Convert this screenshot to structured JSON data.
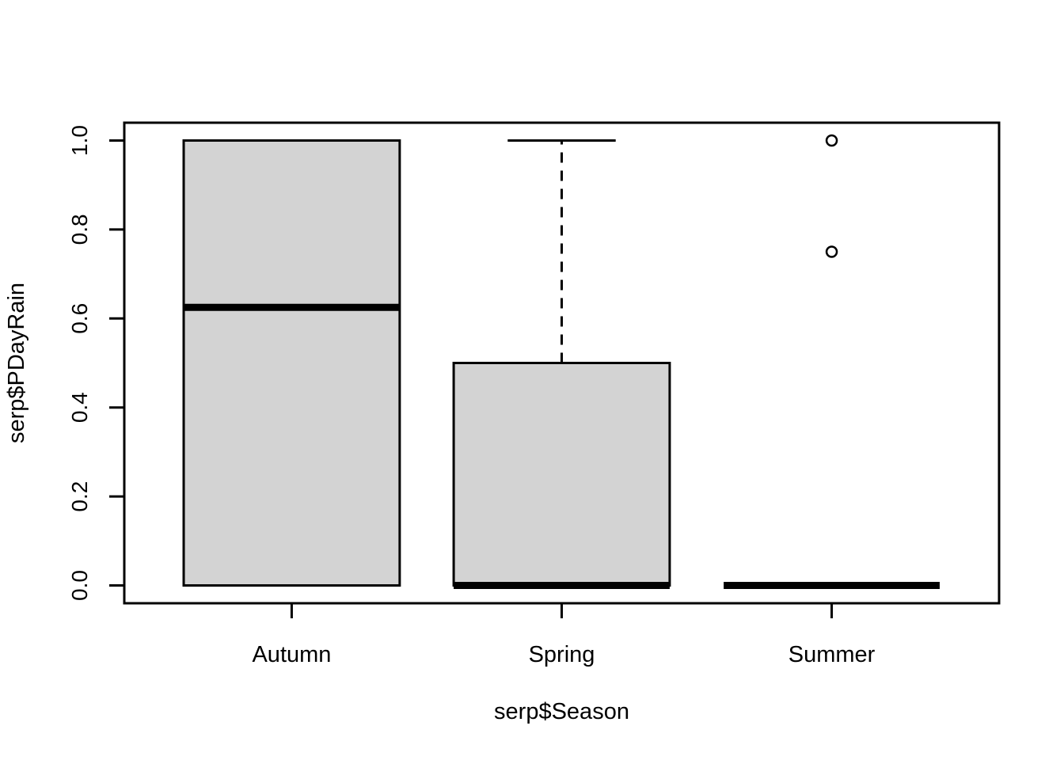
{
  "figure": {
    "background": "#ffffff",
    "box_fill": "#d3d3d3",
    "line_color": "#000000"
  },
  "chart_data": {
    "type": "boxplot",
    "title": "",
    "xlabel": "serp$Season",
    "ylabel": "serp$PDayRain",
    "categories": [
      "Autumn",
      "Spring",
      "Summer"
    ],
    "series": [
      {
        "name": "Autumn",
        "min": 0.0,
        "q1": 0.0,
        "median": 0.625,
        "q3": 1.0,
        "max": 1.0,
        "outliers": []
      },
      {
        "name": "Spring",
        "min": 0.0,
        "q1": 0.0,
        "median": 0.0,
        "q3": 0.5,
        "max": 1.0,
        "outliers": []
      },
      {
        "name": "Summer",
        "min": 0.0,
        "q1": 0.0,
        "median": 0.0,
        "q3": 0.0,
        "max": 0.0,
        "outliers": [
          1.0,
          0.75
        ]
      }
    ],
    "x_positions": [
      1,
      2,
      3
    ],
    "xlim": [
      0.5,
      3.5
    ],
    "ylim": [
      0,
      1
    ],
    "y_tick_values": [
      0,
      0.2,
      0.4,
      0.6,
      0.8,
      1.0
    ],
    "y_tick_labels": [
      "0.0",
      "0.2",
      "0.4",
      "0.6",
      "0.8",
      "1.0"
    ],
    "box_width": 0.8,
    "staple_width": 0.5,
    "grid": false,
    "legend": "none"
  }
}
